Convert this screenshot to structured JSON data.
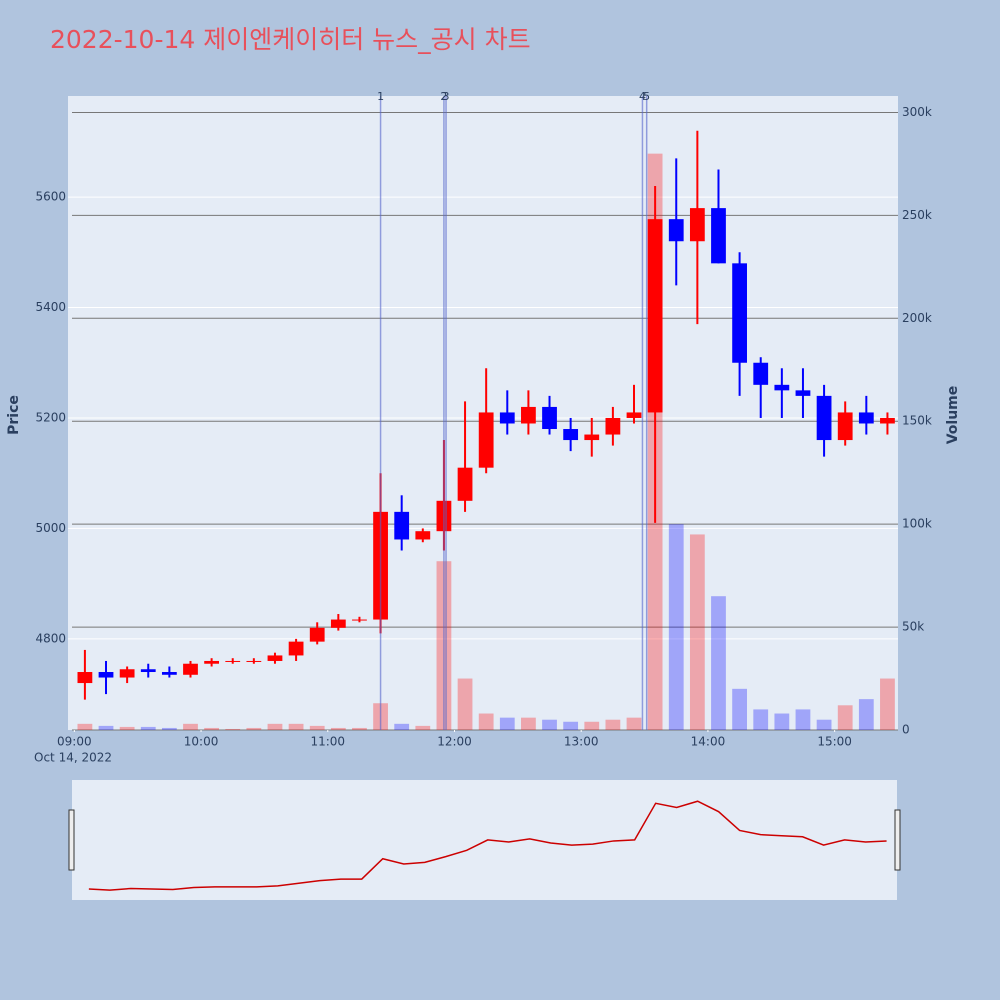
{
  "chart_data": {
    "type": "candlestick",
    "title": "2022-10-14 제이엔케이히터 뉴스_공시 차트",
    "y_title": "Price",
    "y2_title": "Volume",
    "x_date_label": "Oct 14, 2022",
    "up_color": "#ff0000",
    "down_color": "#0000ff",
    "x": [
      "09:00",
      "09:10",
      "09:20",
      "09:30",
      "09:40",
      "09:50",
      "10:00",
      "10:10",
      "10:20",
      "10:30",
      "10:40",
      "10:50",
      "11:00",
      "11:10",
      "11:20",
      "11:30",
      "11:40",
      "11:50",
      "12:00",
      "12:10",
      "12:20",
      "12:30",
      "12:40",
      "12:50",
      "13:00",
      "13:10",
      "13:20",
      "13:30",
      "13:40",
      "13:50",
      "14:00",
      "14:10",
      "14:20",
      "14:30",
      "14:40",
      "14:50",
      "15:00",
      "15:10",
      "15:20"
    ],
    "open": [
      4720,
      4740,
      4730,
      4745,
      4740,
      4735,
      4755,
      4760,
      4760,
      4760,
      4770,
      4795,
      4820,
      4835,
      4835,
      5030,
      4980,
      4995,
      5050,
      5110,
      5210,
      5190,
      5220,
      5180,
      5160,
      5170,
      5200,
      5210,
      5560,
      5520,
      5580,
      5480,
      5300,
      5260,
      5250,
      5240,
      5160,
      5210,
      5190
    ],
    "high": [
      4780,
      4760,
      4750,
      4755,
      4750,
      4760,
      4765,
      4765,
      4765,
      4775,
      4800,
      4830,
      4845,
      4840,
      5100,
      5060,
      5000,
      5160,
      5230,
      5290,
      5250,
      5250,
      5240,
      5200,
      5200,
      5220,
      5260,
      5620,
      5670,
      5720,
      5650,
      5500,
      5310,
      5290,
      5290,
      5260,
      5230,
      5240,
      5210
    ],
    "low": [
      4690,
      4700,
      4720,
      4730,
      4730,
      4730,
      4750,
      4755,
      4755,
      4755,
      4760,
      4790,
      4815,
      4830,
      4810,
      4960,
      4975,
      4960,
      5030,
      5100,
      5170,
      5170,
      5170,
      5140,
      5130,
      5150,
      5190,
      5010,
      5440,
      5370,
      5480,
      5240,
      5200,
      5200,
      5200,
      5130,
      5150,
      5170,
      5170
    ],
    "close": [
      4740,
      4730,
      4745,
      4740,
      4735,
      4755,
      4760,
      4760,
      4760,
      4770,
      4795,
      4820,
      4835,
      4835,
      5030,
      4980,
      4995,
      5050,
      5110,
      5210,
      5190,
      5220,
      5180,
      5160,
      5170,
      5200,
      5210,
      5560,
      5520,
      5580,
      5480,
      5300,
      5260,
      5250,
      5240,
      5160,
      5210,
      5190,
      5200
    ],
    "volume": [
      3000,
      2000,
      1500,
      1500,
      1000,
      3000,
      1000,
      500,
      1000,
      3000,
      3000,
      2000,
      1000,
      1000,
      13000,
      3000,
      2000,
      82000,
      25000,
      8000,
      6000,
      6000,
      5000,
      4000,
      4000,
      5000,
      6000,
      280000,
      100000,
      95000,
      65000,
      20000,
      10000,
      8000,
      10000,
      5000,
      12000,
      15000,
      25000
    ],
    "events": [
      {
        "label": "1",
        "x": "11:25"
      },
      {
        "label": "2",
        "x": "11:55"
      },
      {
        "label": "3",
        "x": "11:56"
      },
      {
        "label": "4",
        "x": "13:29"
      },
      {
        "label": "5",
        "x": "13:31"
      }
    ],
    "xlim": [
      "08:57",
      "15:30"
    ],
    "xticks": [
      "09:00",
      "10:00",
      "11:00",
      "12:00",
      "13:00",
      "14:00",
      "15:00"
    ],
    "ylim": [
      4635,
      5783
    ],
    "yticks": [
      4800,
      5000,
      5200,
      5400,
      5600
    ],
    "y2lim": [
      0,
      308000
    ],
    "y2ticks": [
      {
        "value": 0,
        "label": "0"
      },
      {
        "value": 50000,
        "label": "50k"
      },
      {
        "value": 100000,
        "label": "100k"
      },
      {
        "value": 150000,
        "label": "150k"
      },
      {
        "value": 200000,
        "label": "200k"
      },
      {
        "value": 250000,
        "label": "250k"
      },
      {
        "value": 300000,
        "label": "300k"
      }
    ]
  }
}
